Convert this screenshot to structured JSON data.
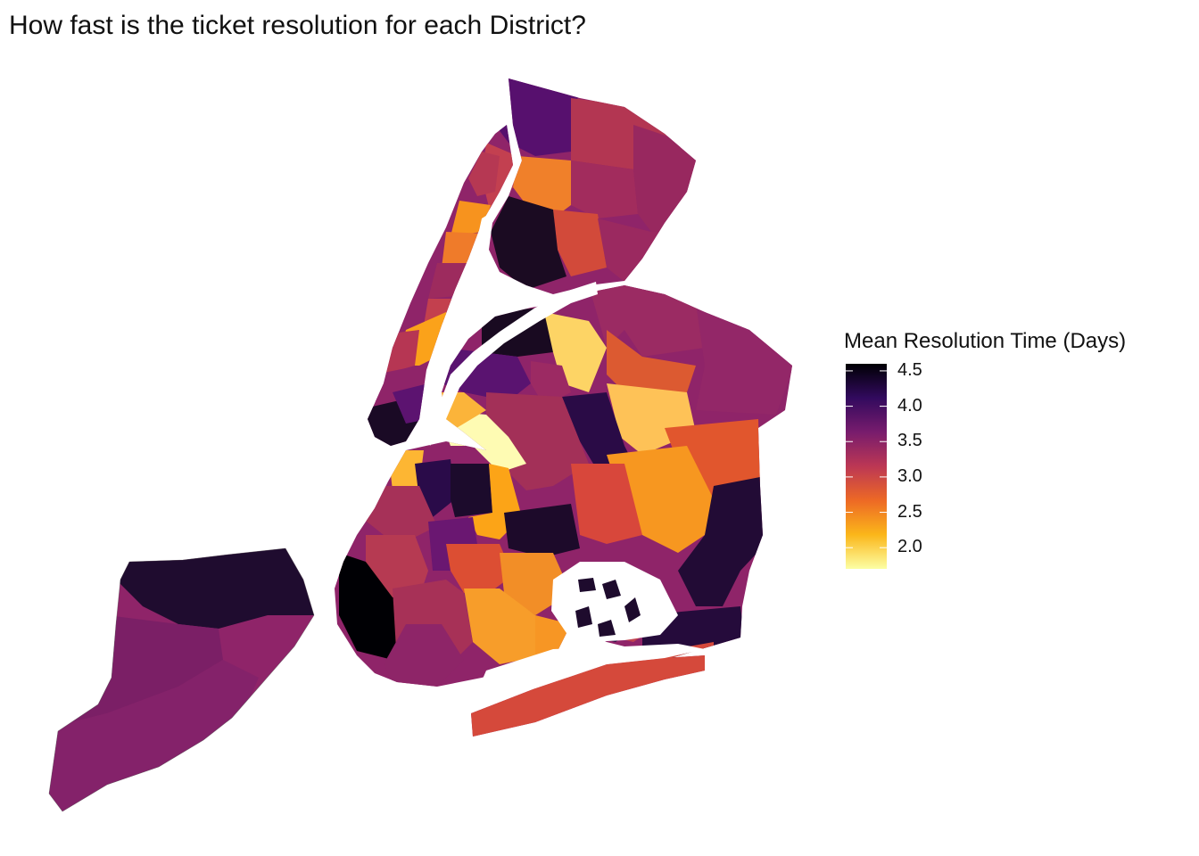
{
  "title": "How fast is the ticket resolution for each District?",
  "legend": {
    "title": "Mean Resolution Time (Days)",
    "ticks": [
      "4.5",
      "4.0",
      "3.5",
      "3.0",
      "2.5",
      "2.0"
    ],
    "tick_values": [
      4.5,
      4.0,
      3.5,
      3.0,
      2.5,
      2.0
    ],
    "min": 1.7,
    "max": 4.6,
    "palette": [
      "#fcffa4",
      "#fbb61a",
      "#ed6925",
      "#bc3754",
      "#781c6d",
      "#320a5e",
      "#000004"
    ]
  },
  "colors": {
    "water": "#ffffff",
    "border": "#555555"
  }
}
